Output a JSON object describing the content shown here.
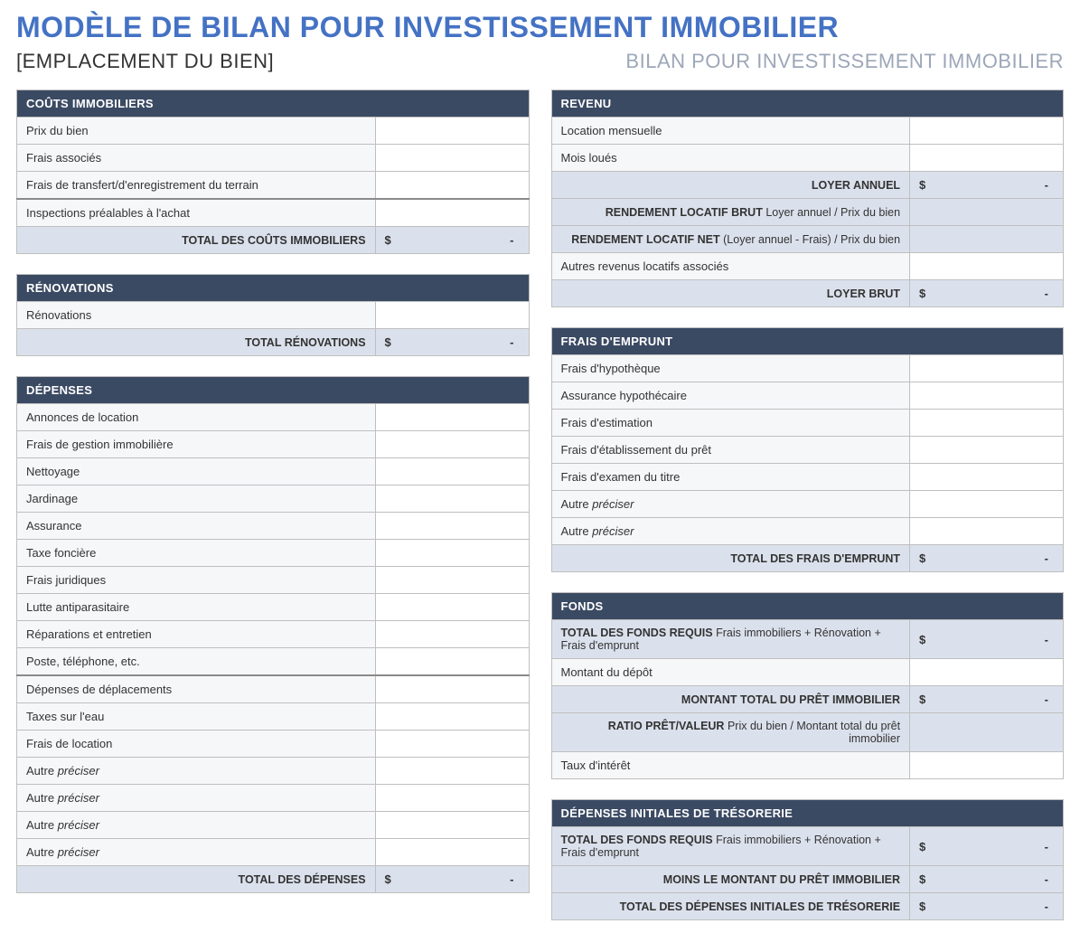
{
  "title": "MODÈLE DE BILAN POUR INVESTISSEMENT IMMOBILIER",
  "subhead_left": "[EMPLACEMENT DU BIEN]",
  "subhead_right": "BILAN POUR INVESTISSEMENT IMMOBILIER",
  "colors": {
    "title": "#4472c4",
    "header_bg": "#3b4a63",
    "header_fg": "#ffffff",
    "row_bg": "#f6f7f9",
    "total_bg": "#dbe1ec",
    "border": "#bfbfbf",
    "subhead_grey": "#9ca7b8"
  },
  "currency_symbol": "$",
  "empty_dash": "-",
  "sections": {
    "costs": {
      "header": "COÛTS IMMOBILIERS",
      "rows": [
        {
          "label": "Prix du bien",
          "value": ""
        },
        {
          "label": "Frais associés",
          "value": ""
        },
        {
          "label": "Frais de transfert/d'enregistrement du terrain",
          "value": ""
        },
        {
          "label": "Inspections préalables à l'achat",
          "value": "",
          "divider": true
        }
      ],
      "total_label": "TOTAL DES COÛTS IMMOBILIERS"
    },
    "reno": {
      "header": "RÉNOVATIONS",
      "rows": [
        {
          "label": "Rénovations",
          "value": ""
        }
      ],
      "total_label": "TOTAL RÉNOVATIONS"
    },
    "expenses": {
      "header": "DÉPENSES",
      "rows": [
        {
          "label": "Annonces de location",
          "value": ""
        },
        {
          "label": "Frais de gestion immobilière",
          "value": ""
        },
        {
          "label": "Nettoyage",
          "value": ""
        },
        {
          "label": "Jardinage",
          "value": ""
        },
        {
          "label": "Assurance",
          "value": ""
        },
        {
          "label": "Taxe foncière",
          "value": ""
        },
        {
          "label": "Frais juridiques",
          "value": ""
        },
        {
          "label": "Lutte antiparasitaire",
          "value": ""
        },
        {
          "label": "Réparations et entretien",
          "value": ""
        },
        {
          "label": "Poste, téléphone, etc.",
          "value": ""
        },
        {
          "label": "Dépenses de déplacements",
          "value": "",
          "divider": true
        },
        {
          "label": "Taxes sur l'eau",
          "value": ""
        },
        {
          "label": "Frais de location",
          "value": ""
        },
        {
          "label": "Autre",
          "italic": "préciser",
          "value": ""
        },
        {
          "label": "Autre",
          "italic": "préciser",
          "value": ""
        },
        {
          "label": "Autre",
          "italic": "préciser",
          "value": ""
        },
        {
          "label": "Autre",
          "italic": "préciser",
          "value": ""
        }
      ],
      "total_label": "TOTAL DES DÉPENSES"
    },
    "revenue": {
      "header": "REVENU",
      "rows": [
        {
          "label": "Location mensuelle",
          "value": ""
        },
        {
          "label": "Mois loués",
          "value": ""
        }
      ],
      "calc_rows": [
        {
          "bold": "LOYER ANNUEL",
          "sub": "",
          "money": true
        },
        {
          "bold": "RENDEMENT LOCATIF BRUT",
          "sub": "Loyer annuel / Prix du bien",
          "money": false
        },
        {
          "bold": "RENDEMENT LOCATIF NET",
          "sub": "(Loyer annuel - Frais) / Prix du bien",
          "money": false
        }
      ],
      "rows2": [
        {
          "label": "Autres revenus locatifs associés",
          "value": ""
        }
      ],
      "total_label": "LOYER BRUT"
    },
    "loan": {
      "header": "FRAIS D'EMPRUNT",
      "rows": [
        {
          "label": "Frais d'hypothèque",
          "value": ""
        },
        {
          "label": "Assurance hypothécaire",
          "value": ""
        },
        {
          "label": "Frais d'estimation",
          "value": ""
        },
        {
          "label": "Frais d'établissement du prêt",
          "value": ""
        },
        {
          "label": "Frais d'examen du titre",
          "value": ""
        },
        {
          "label": "Autre",
          "italic": "préciser",
          "value": ""
        },
        {
          "label": "Autre",
          "italic": "préciser",
          "value": ""
        }
      ],
      "total_label": "TOTAL DES FRAIS D'EMPRUNT"
    },
    "funds": {
      "header": "FONDS",
      "calc_rows": [
        {
          "bold": "TOTAL DES FONDS REQUIS",
          "sub": "Frais immobiliers + Rénovation + Frais d'emprunt",
          "money": true,
          "align": "left"
        }
      ],
      "rows": [
        {
          "label": "Montant du dépôt",
          "value": ""
        }
      ],
      "calc_rows2": [
        {
          "bold": "MONTANT TOTAL DU PRÊT IMMOBILIER",
          "sub": "",
          "money": true
        },
        {
          "bold": "RATIO PRÊT/VALEUR",
          "sub": "Prix du bien / Montant total du prêt immobilier",
          "money": false
        }
      ],
      "rows2": [
        {
          "label": "Taux d'intérêt",
          "value": ""
        }
      ]
    },
    "cash": {
      "header": "DÉPENSES INITIALES DE TRÉSORERIE",
      "calc_rows": [
        {
          "bold": "TOTAL DES FONDS REQUIS",
          "sub": "Frais immobiliers + Rénovation + Frais d'emprunt",
          "money": true,
          "align": "left"
        },
        {
          "bold": "MOINS LE MONTANT DU PRÊT IMMOBILIER",
          "sub": "",
          "money": true
        },
        {
          "bold": "TOTAL DES DÉPENSES INITIALES DE TRÉSORERIE",
          "sub": "",
          "money": true
        }
      ]
    }
  }
}
